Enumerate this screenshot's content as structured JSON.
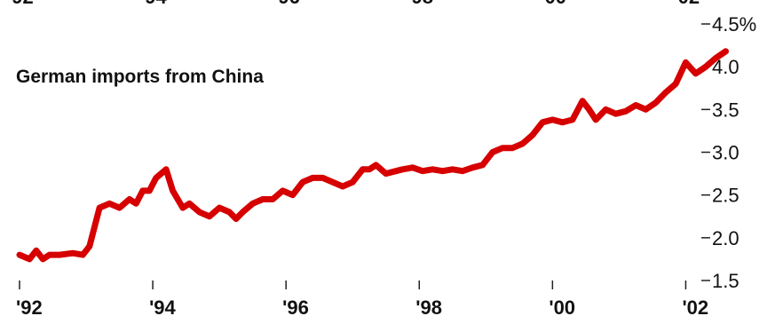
{
  "chart_data": {
    "type": "line",
    "title": "German imports from China",
    "ylabel": "",
    "xlabel": "",
    "ylim": [
      1.5,
      4.5
    ],
    "xlim": [
      1992,
      2003.3
    ],
    "y_ticks": [
      {
        "value": 4.5,
        "label": "4.5%"
      },
      {
        "value": 4.0,
        "label": "4.0"
      },
      {
        "value": 3.5,
        "label": "3.5"
      },
      {
        "value": 3.0,
        "label": "3.0"
      },
      {
        "value": 2.5,
        "label": "2.5"
      },
      {
        "value": 2.0,
        "label": "2.0"
      },
      {
        "value": 1.5,
        "label": "1.5"
      }
    ],
    "x_ticks": [
      {
        "value": 1992,
        "label": "'92"
      },
      {
        "value": 1994,
        "label": "'94"
      },
      {
        "value": 1996,
        "label": "'96"
      },
      {
        "value": 1998,
        "label": "'98"
      },
      {
        "value": 2000,
        "label": "'00"
      },
      {
        "value": 2002,
        "label": "'02"
      }
    ],
    "grid": false,
    "series": [
      {
        "color": "#d60000",
        "x": [
          1992.0,
          1992.15,
          1992.25,
          1992.35,
          1992.45,
          1992.6,
          1992.8,
          1992.95,
          1993.05,
          1993.2,
          1993.35,
          1993.5,
          1993.65,
          1993.75,
          1993.85,
          1993.95,
          1994.05,
          1994.2,
          1994.3,
          1994.45,
          1994.55,
          1994.7,
          1994.85,
          1995.0,
          1995.15,
          1995.25,
          1995.35,
          1995.5,
          1995.65,
          1995.8,
          1995.95,
          1996.1,
          1996.25,
          1996.4,
          1996.55,
          1996.7,
          1996.85,
          1997.0,
          1997.15,
          1997.25,
          1997.35,
          1997.5,
          1997.65,
          1997.75,
          1997.9,
          1998.05,
          1998.2,
          1998.35,
          1998.5,
          1998.65,
          1998.8,
          1998.95,
          1999.1,
          1999.25,
          1999.4,
          1999.55,
          1999.7,
          1999.85,
          2000.0,
          2000.15,
          2000.3,
          2000.45,
          2000.55,
          2000.65,
          2000.8,
          2000.95,
          2001.1,
          2001.25,
          2001.4,
          2001.55,
          2001.7,
          2001.85,
          2002.0,
          2002.15,
          2002.3,
          2002.45,
          2002.6
        ],
        "y": [
          1.8,
          1.75,
          1.85,
          1.75,
          1.8,
          1.8,
          1.82,
          1.8,
          1.9,
          2.35,
          2.4,
          2.35,
          2.45,
          2.4,
          2.55,
          2.55,
          2.7,
          2.8,
          2.55,
          2.35,
          2.4,
          2.3,
          2.25,
          2.35,
          2.3,
          2.22,
          2.3,
          2.4,
          2.45,
          2.45,
          2.55,
          2.5,
          2.65,
          2.7,
          2.7,
          2.65,
          2.6,
          2.65,
          2.8,
          2.8,
          2.85,
          2.75,
          2.78,
          2.8,
          2.82,
          2.78,
          2.8,
          2.78,
          2.8,
          2.78,
          2.82,
          2.85,
          3.0,
          3.05,
          3.05,
          3.1,
          3.2,
          3.35,
          3.38,
          3.35,
          3.38,
          3.6,
          3.5,
          3.38,
          3.5,
          3.45,
          3.48,
          3.55,
          3.5,
          3.58,
          3.7,
          3.8,
          4.05,
          3.92,
          4.0,
          4.1,
          4.18
        ]
      }
    ]
  }
}
